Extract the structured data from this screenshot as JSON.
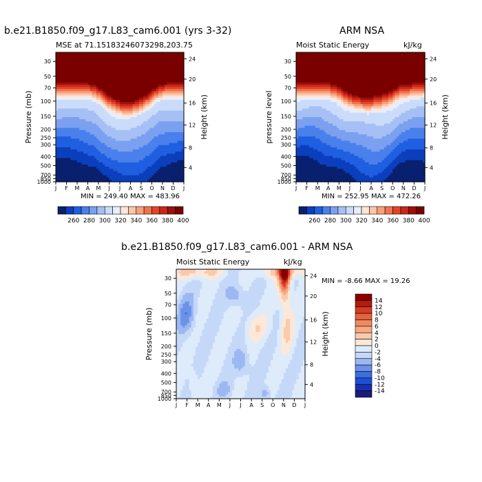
{
  "chart_data": [
    {
      "type": "heatmap",
      "title": "b.e21.B1850.f09_g17.L83_cam6.001 (yrs 3-32)",
      "subtitle_left": "MSE at 71.15183246073298,203.75",
      "subtitle_right": "",
      "ylabel": "Pressure (mb)",
      "ylabel_right": "Height (km)",
      "x_ticks": [
        "J",
        "F",
        "M",
        "A",
        "M",
        "J",
        "J",
        "A",
        "S",
        "O",
        "N",
        "D",
        "J"
      ],
      "y_ticks": [
        "30",
        "50",
        "70",
        "100",
        "150",
        "200",
        "250",
        "300",
        "400",
        "500",
        "700",
        "850",
        "1000"
      ],
      "y_ticks_right": [
        "24",
        "20",
        "16",
        "12",
        "8",
        "4"
      ],
      "min": 249.4,
      "max": 483.96,
      "stats": "MIN = 249.40 MAX = 483.96",
      "colorbar_ticks": [
        "260",
        "280",
        "300",
        "320",
        "340",
        "360",
        "380",
        "400"
      ]
    },
    {
      "type": "heatmap",
      "title": "ARM NSA",
      "subtitle_left": "Moist Static Energy",
      "subtitle_right": "kJ/kg",
      "ylabel": "pressure level",
      "ylabel_right": "Height (km)",
      "x_ticks": [
        "J",
        "F",
        "M",
        "A",
        "M",
        "J",
        "J",
        "A",
        "S",
        "O",
        "N",
        "D",
        "J"
      ],
      "y_ticks": [
        "30",
        "50",
        "70",
        "100",
        "150",
        "200",
        "250",
        "300",
        "400",
        "500",
        "700",
        "850",
        "1000"
      ],
      "y_ticks_right": [
        "24",
        "20",
        "16",
        "12",
        "8",
        "4"
      ],
      "min": 252.95,
      "max": 472.26,
      "stats": "MIN = 252.95 MAX = 472.26",
      "colorbar_ticks": [
        "260",
        "280",
        "300",
        "320",
        "340",
        "360",
        "380",
        "400"
      ]
    },
    {
      "type": "heatmap",
      "title": "b.e21.B1850.f09_g17.L83_cam6.001 - ARM NSA",
      "subtitle_left": "Moist Static Energy",
      "subtitle_right": "kJ/kg",
      "ylabel": "Pressure (mb)",
      "ylabel_right": "Height (km)",
      "x_ticks": [
        "J",
        "F",
        "M",
        "A",
        "M",
        "J",
        "J",
        "A",
        "S",
        "O",
        "N",
        "D",
        "J"
      ],
      "y_ticks": [
        "30",
        "50",
        "70",
        "100",
        "150",
        "200",
        "250",
        "300",
        "400",
        "500",
        "700",
        "850",
        "1000"
      ],
      "y_ticks_right": [
        "24",
        "20",
        "16",
        "12",
        "8",
        "4"
      ],
      "min": -8.66,
      "max": 19.26,
      "stats": "MIN =   -8.66 MAX =   19.26",
      "colorbar_ticks": [
        "14",
        "12",
        "10",
        "8",
        "6",
        "4",
        "2",
        "0",
        "-2",
        "-4",
        "-6",
        "-8",
        "-10",
        "-12",
        "-14"
      ]
    }
  ],
  "colors": {
    "seq": [
      "#08206e",
      "#0b3fbd",
      "#1f5fe0",
      "#4a80eb",
      "#7ba0f0",
      "#a6c0f5",
      "#cbdcfa",
      "#e8eefc",
      "#fde6d8",
      "#fbc6a8",
      "#f8a07a",
      "#f0734f",
      "#e44528",
      "#c9261a",
      "#9c100c",
      "#7a0000"
    ],
    "div": [
      "#1b1b7a",
      "#1a2fb0",
      "#1f4fd8",
      "#3b6fe0",
      "#6b92e8",
      "#9cb8f2",
      "#c5d8f8",
      "#deebfb",
      "#fde8d8",
      "#fbc9ad",
      "#f8a982",
      "#f08960",
      "#e8623f",
      "#d63c22",
      "#b01c10",
      "#8a0000"
    ]
  }
}
